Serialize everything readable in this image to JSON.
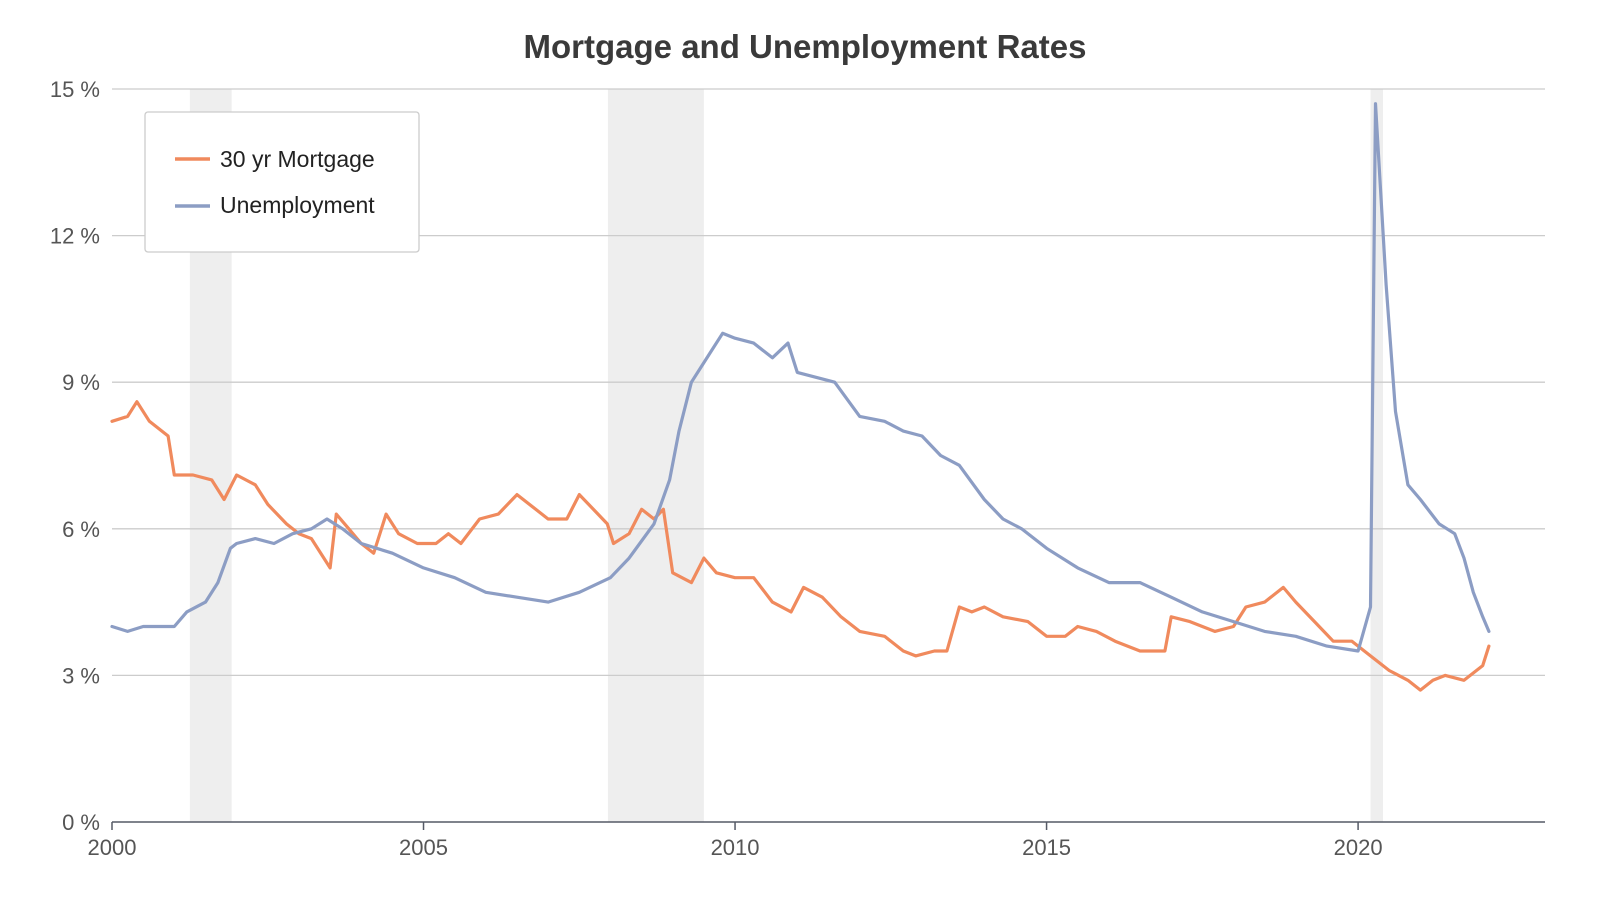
{
  "chart_data": {
    "type": "line",
    "title": "Mortgage and Unemployment Rates",
    "xlabel": "",
    "ylabel": "",
    "xlim": [
      2000,
      2023
    ],
    "ylim": [
      0,
      15
    ],
    "x_ticks": [
      {
        "value": 2000,
        "label": "2000"
      },
      {
        "value": 2005,
        "label": "2005"
      },
      {
        "value": 2010,
        "label": "2010"
      },
      {
        "value": 2015,
        "label": "2015"
      },
      {
        "value": 2020,
        "label": "2020"
      }
    ],
    "y_ticks": [
      {
        "value": 0,
        "label": "0 %"
      },
      {
        "value": 3,
        "label": "3 %"
      },
      {
        "value": 6,
        "label": "6 %"
      },
      {
        "value": 9,
        "label": "9 %"
      },
      {
        "value": 12,
        "label": "12 %"
      },
      {
        "value": 15,
        "label": "15 %"
      }
    ],
    "grid": "horizontal",
    "legend_position": "top-left",
    "recessions": [
      {
        "start": 2001.25,
        "end": 2001.92
      },
      {
        "start": 2007.96,
        "end": 2009.5
      },
      {
        "start": 2020.2,
        "end": 2020.4
      }
    ],
    "series": [
      {
        "name": "30 yr Mortgage",
        "color": "#f08a5d",
        "points": [
          [
            2000.0,
            8.2
          ],
          [
            2000.25,
            8.3
          ],
          [
            2000.4,
            8.6
          ],
          [
            2000.6,
            8.2
          ],
          [
            2000.9,
            7.9
          ],
          [
            2001.0,
            7.1
          ],
          [
            2001.3,
            7.1
          ],
          [
            2001.6,
            7.0
          ],
          [
            2001.8,
            6.6
          ],
          [
            2002.0,
            7.1
          ],
          [
            2002.3,
            6.9
          ],
          [
            2002.5,
            6.5
          ],
          [
            2002.8,
            6.1
          ],
          [
            2003.0,
            5.9
          ],
          [
            2003.2,
            5.8
          ],
          [
            2003.5,
            5.2
          ],
          [
            2003.6,
            6.3
          ],
          [
            2003.8,
            6.0
          ],
          [
            2004.0,
            5.7
          ],
          [
            2004.2,
            5.5
          ],
          [
            2004.4,
            6.3
          ],
          [
            2004.6,
            5.9
          ],
          [
            2004.9,
            5.7
          ],
          [
            2005.2,
            5.7
          ],
          [
            2005.4,
            5.9
          ],
          [
            2005.6,
            5.7
          ],
          [
            2005.9,
            6.2
          ],
          [
            2006.2,
            6.3
          ],
          [
            2006.5,
            6.7
          ],
          [
            2006.8,
            6.4
          ],
          [
            2007.0,
            6.2
          ],
          [
            2007.3,
            6.2
          ],
          [
            2007.5,
            6.7
          ],
          [
            2007.8,
            6.3
          ],
          [
            2007.95,
            6.1
          ],
          [
            2008.05,
            5.7
          ],
          [
            2008.3,
            5.9
          ],
          [
            2008.5,
            6.4
          ],
          [
            2008.7,
            6.2
          ],
          [
            2008.85,
            6.4
          ],
          [
            2009.0,
            5.1
          ],
          [
            2009.3,
            4.9
          ],
          [
            2009.5,
            5.4
          ],
          [
            2009.7,
            5.1
          ],
          [
            2010.0,
            5.0
          ],
          [
            2010.3,
            5.0
          ],
          [
            2010.6,
            4.5
          ],
          [
            2010.9,
            4.3
          ],
          [
            2011.1,
            4.8
          ],
          [
            2011.4,
            4.6
          ],
          [
            2011.7,
            4.2
          ],
          [
            2012.0,
            3.9
          ],
          [
            2012.4,
            3.8
          ],
          [
            2012.7,
            3.5
          ],
          [
            2012.9,
            3.4
          ],
          [
            2013.2,
            3.5
          ],
          [
            2013.4,
            3.5
          ],
          [
            2013.6,
            4.4
          ],
          [
            2013.8,
            4.3
          ],
          [
            2014.0,
            4.4
          ],
          [
            2014.3,
            4.2
          ],
          [
            2014.7,
            4.1
          ],
          [
            2015.0,
            3.8
          ],
          [
            2015.3,
            3.8
          ],
          [
            2015.5,
            4.0
          ],
          [
            2015.8,
            3.9
          ],
          [
            2016.1,
            3.7
          ],
          [
            2016.5,
            3.5
          ],
          [
            2016.9,
            3.5
          ],
          [
            2017.0,
            4.2
          ],
          [
            2017.3,
            4.1
          ],
          [
            2017.7,
            3.9
          ],
          [
            2018.0,
            4.0
          ],
          [
            2018.2,
            4.4
          ],
          [
            2018.5,
            4.5
          ],
          [
            2018.8,
            4.8
          ],
          [
            2019.0,
            4.5
          ],
          [
            2019.3,
            4.1
          ],
          [
            2019.6,
            3.7
          ],
          [
            2019.9,
            3.7
          ],
          [
            2020.2,
            3.4
          ],
          [
            2020.5,
            3.1
          ],
          [
            2020.8,
            2.9
          ],
          [
            2021.0,
            2.7
          ],
          [
            2021.2,
            2.9
          ],
          [
            2021.4,
            3.0
          ],
          [
            2021.7,
            2.9
          ],
          [
            2022.0,
            3.2
          ],
          [
            2022.1,
            3.6
          ]
        ]
      },
      {
        "name": "Unemployment",
        "color": "#8c9dc4",
        "points": [
          [
            2000.0,
            4.0
          ],
          [
            2000.25,
            3.9
          ],
          [
            2000.5,
            4.0
          ],
          [
            2000.8,
            4.0
          ],
          [
            2001.0,
            4.0
          ],
          [
            2001.2,
            4.3
          ],
          [
            2001.5,
            4.5
          ],
          [
            2001.7,
            4.9
          ],
          [
            2001.9,
            5.6
          ],
          [
            2002.0,
            5.7
          ],
          [
            2002.3,
            5.8
          ],
          [
            2002.6,
            5.7
          ],
          [
            2002.9,
            5.9
          ],
          [
            2003.2,
            6.0
          ],
          [
            2003.45,
            6.2
          ],
          [
            2003.7,
            6.0
          ],
          [
            2004.0,
            5.7
          ],
          [
            2004.5,
            5.5
          ],
          [
            2005.0,
            5.2
          ],
          [
            2005.5,
            5.0
          ],
          [
            2006.0,
            4.7
          ],
          [
            2006.5,
            4.6
          ],
          [
            2007.0,
            4.5
          ],
          [
            2007.5,
            4.7
          ],
          [
            2008.0,
            5.0
          ],
          [
            2008.3,
            5.4
          ],
          [
            2008.7,
            6.1
          ],
          [
            2008.95,
            7.0
          ],
          [
            2009.1,
            8.0
          ],
          [
            2009.3,
            9.0
          ],
          [
            2009.6,
            9.6
          ],
          [
            2009.8,
            10.0
          ],
          [
            2010.0,
            9.9
          ],
          [
            2010.3,
            9.8
          ],
          [
            2010.6,
            9.5
          ],
          [
            2010.85,
            9.8
          ],
          [
            2011.0,
            9.2
          ],
          [
            2011.3,
            9.1
          ],
          [
            2011.6,
            9.0
          ],
          [
            2012.0,
            8.3
          ],
          [
            2012.4,
            8.2
          ],
          [
            2012.7,
            8.0
          ],
          [
            2013.0,
            7.9
          ],
          [
            2013.3,
            7.5
          ],
          [
            2013.6,
            7.3
          ],
          [
            2014.0,
            6.6
          ],
          [
            2014.3,
            6.2
          ],
          [
            2014.6,
            6.0
          ],
          [
            2015.0,
            5.6
          ],
          [
            2015.5,
            5.2
          ],
          [
            2016.0,
            4.9
          ],
          [
            2016.5,
            4.9
          ],
          [
            2017.0,
            4.6
          ],
          [
            2017.5,
            4.3
          ],
          [
            2018.0,
            4.1
          ],
          [
            2018.5,
            3.9
          ],
          [
            2019.0,
            3.8
          ],
          [
            2019.5,
            3.6
          ],
          [
            2020.0,
            3.5
          ],
          [
            2020.2,
            4.4
          ],
          [
            2020.28,
            14.7
          ],
          [
            2020.45,
            11.0
          ],
          [
            2020.6,
            8.4
          ],
          [
            2020.8,
            6.9
          ],
          [
            2021.0,
            6.6
          ],
          [
            2021.3,
            6.1
          ],
          [
            2021.55,
            5.9
          ],
          [
            2021.7,
            5.4
          ],
          [
            2021.85,
            4.7
          ],
          [
            2022.0,
            4.2
          ],
          [
            2022.1,
            3.9
          ]
        ]
      }
    ]
  }
}
